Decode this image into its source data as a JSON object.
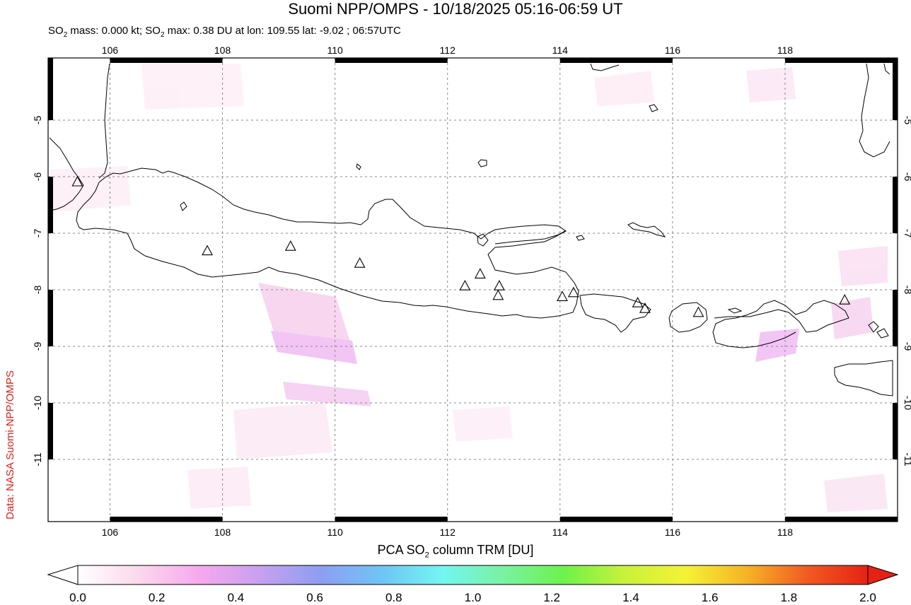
{
  "title": "Suomi NPP/OMPS - 10/18/2025 05:16-06:59 UT",
  "subtitle": {
    "prefix": "SO",
    "sub1": "2",
    "mass": " mass: 0.000 kt; SO",
    "sub2": "2",
    "max": " max: 0.38 DU at lon: 109.55 lat: -9.02 ; 06:57UTC"
  },
  "credit": "Data: NASA Suomi-NPP/OMPS",
  "map": {
    "lon_range": [
      104.9,
      120.0
    ],
    "lat_range": [
      -12.1,
      -3.9
    ],
    "lon_ticks": [
      "106",
      "108",
      "110",
      "112",
      "114",
      "116",
      "118"
    ],
    "lat_ticks": [
      "-5",
      "-6",
      "-7",
      "-8",
      "-9",
      "-10",
      "-11"
    ],
    "volcanoes": [
      {
        "lon": 105.42,
        "lat": -6.1
      },
      {
        "lon": 107.73,
        "lat": -7.32
      },
      {
        "lon": 109.21,
        "lat": -7.24
      },
      {
        "lon": 110.44,
        "lat": -7.54
      },
      {
        "lon": 112.31,
        "lat": -7.94
      },
      {
        "lon": 112.58,
        "lat": -7.73
      },
      {
        "lon": 112.92,
        "lat": -7.94
      },
      {
        "lon": 112.9,
        "lat": -8.11
      },
      {
        "lon": 114.04,
        "lat": -8.13
      },
      {
        "lon": 114.24,
        "lat": -8.06
      },
      {
        "lon": 115.38,
        "lat": -8.24
      },
      {
        "lon": 115.51,
        "lat": -8.34
      },
      {
        "lon": 116.46,
        "lat": -8.41
      },
      {
        "lon": 119.06,
        "lat": -8.19
      }
    ],
    "colors": {
      "coast": "#000000",
      "grid": "#888888",
      "triangle": "#000000",
      "so2_low": "#fde4f2",
      "so2_mid": "#f6b3ea",
      "so2_high": "#eaa0ef"
    }
  },
  "colorbar": {
    "label_prefix": "PCA SO",
    "label_sub": "2",
    "label_suffix": " column TRM [DU]",
    "ticks": [
      "0.0",
      "0.2",
      "0.4",
      "0.6",
      "0.8",
      "1.0",
      "1.2",
      "1.4",
      "1.6",
      "1.8",
      "2.0"
    ],
    "range": [
      0.0,
      2.0
    ],
    "colors": [
      "#ffffff",
      "#fbd8ec",
      "#f7a8ee",
      "#c7a0ef",
      "#8e9ef2",
      "#6fc4f5",
      "#74f5f2",
      "#79f2a1",
      "#6ef24c",
      "#c8f23a",
      "#f5f236",
      "#f5b426",
      "#f25a22",
      "#e52215"
    ]
  }
}
